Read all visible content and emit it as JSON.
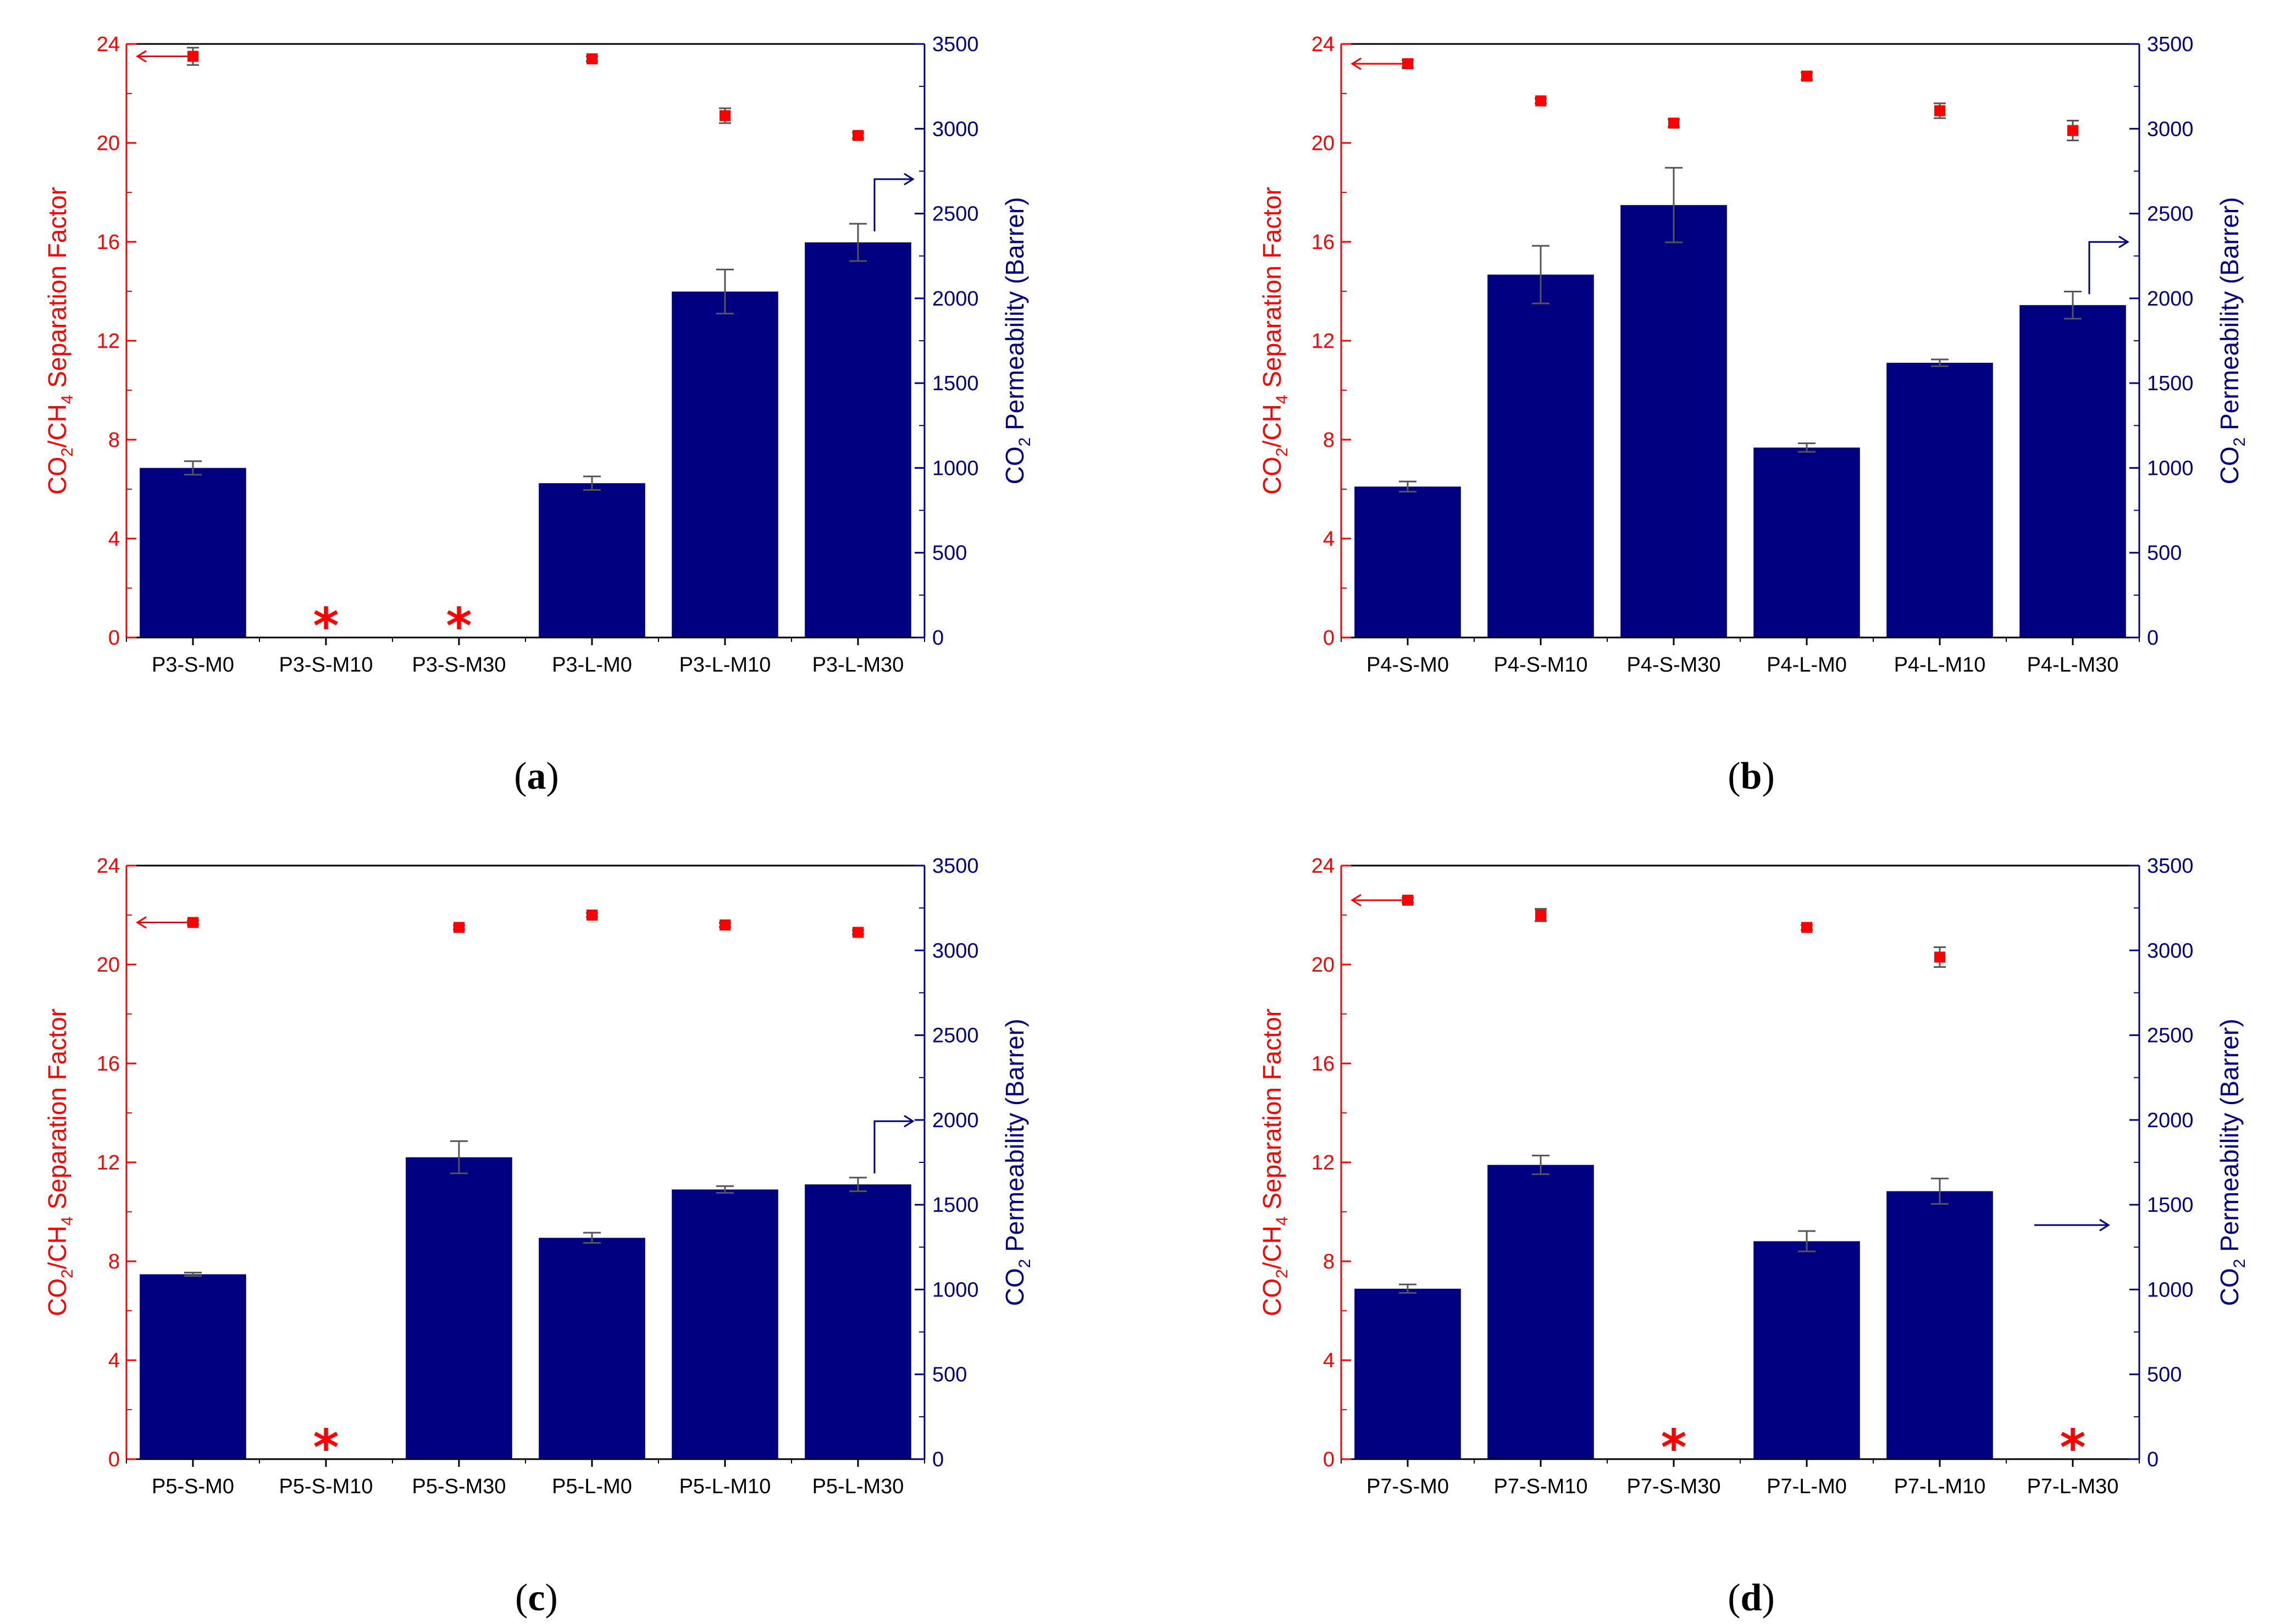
{
  "colors": {
    "separation": "#ff0000",
    "permeability": "#000080",
    "error_bar": "#555555",
    "axis": "#000000"
  },
  "chart_data": [
    {
      "type": "bar",
      "panel_label": "a",
      "categories": [
        "P3-S-M0",
        "P3-S-M10",
        "P3-S-M30",
        "P3-L-M0",
        "P3-L-M10",
        "P3-L-M30"
      ],
      "series": [
        {
          "name": "CO2 Permeability (Barrer)",
          "axis": "right",
          "values": [
            1000,
            null,
            null,
            910,
            2040,
            2330
          ],
          "errors": [
            40,
            null,
            null,
            40,
            130,
            110
          ]
        },
        {
          "name": "CO2/CH4 Separation Factor",
          "axis": "left",
          "type": "scatter",
          "values": [
            23.5,
            null,
            null,
            23.4,
            21.1,
            20.3
          ],
          "errors": [
            0.35,
            null,
            null,
            0.1,
            0.3,
            0.12
          ]
        }
      ],
      "missing_markers": [
        "P3-S-M10",
        "P3-S-M30"
      ],
      "missing_symbol": "*",
      "ylim_left": [
        0,
        24
      ],
      "yticks_left": [
        0,
        4,
        8,
        12,
        16,
        20,
        24
      ],
      "ylim_right": [
        0,
        3500
      ],
      "yticks_right": [
        0,
        500,
        1000,
        1500,
        2000,
        2500,
        3000,
        3500
      ],
      "ylabel_left": {
        "main_1": "CO",
        "sub_1": "2",
        "main_2": "/CH",
        "sub_2": "4",
        "main_3": " Separation Factor"
      },
      "ylabel_right": {
        "main_1": "CO",
        "sub_1": "2",
        "main_2": " Permeability (Barrer)"
      },
      "annotations": {
        "left_arrow": {
          "x_index": 0,
          "y_left": 23.5
        },
        "right_arrow": {
          "x_index": 5,
          "y_right": 2330,
          "style": "bent"
        }
      }
    },
    {
      "type": "bar",
      "panel_label": "b",
      "categories": [
        "P4-S-M0",
        "P4-S-M10",
        "P4-S-M30",
        "P4-L-M0",
        "P4-L-M10",
        "P4-L-M30"
      ],
      "series": [
        {
          "name": "CO2 Permeability (Barrer)",
          "axis": "right",
          "values": [
            890,
            2140,
            2550,
            1120,
            1620,
            1960
          ],
          "errors": [
            30,
            170,
            220,
            25,
            20,
            80
          ]
        },
        {
          "name": "CO2/CH4 Separation Factor",
          "axis": "left",
          "type": "scatter",
          "values": [
            23.2,
            21.7,
            20.8,
            22.7,
            21.3,
            20.5
          ],
          "errors": [
            0.15,
            0.1,
            0.15,
            0.15,
            0.3,
            0.4
          ]
        }
      ],
      "missing_markers": [],
      "missing_symbol": "*",
      "ylim_left": [
        0,
        24
      ],
      "yticks_left": [
        0,
        4,
        8,
        12,
        16,
        20,
        24
      ],
      "ylim_right": [
        0,
        3500
      ],
      "yticks_right": [
        0,
        500,
        1000,
        1500,
        2000,
        2500,
        3000,
        3500
      ],
      "ylabel_left": {
        "main_1": "CO",
        "sub_1": "2",
        "main_2": "/CH",
        "sub_2": "4",
        "main_3": " Separation Factor"
      },
      "ylabel_right": {
        "main_1": "CO",
        "sub_1": "2",
        "main_2": " Permeability (Barrer)"
      },
      "annotations": {
        "left_arrow": {
          "x_index": 0,
          "y_left": 23.2
        },
        "right_arrow": {
          "x_index": 5,
          "y_right": 1960,
          "style": "bent"
        }
      }
    },
    {
      "type": "bar",
      "panel_label": "c",
      "categories": [
        "P5-S-M0",
        "P5-S-M10",
        "P5-S-M30",
        "P5-L-M0",
        "P5-L-M10",
        "P5-L-M30"
      ],
      "series": [
        {
          "name": "CO2 Permeability (Barrer)",
          "axis": "right",
          "values": [
            1090,
            null,
            1780,
            1305,
            1590,
            1620
          ],
          "errors": [
            10,
            null,
            95,
            30,
            20,
            40
          ]
        },
        {
          "name": "CO2/CH4 Separation Factor",
          "axis": "left",
          "type": "scatter",
          "values": [
            21.7,
            null,
            21.5,
            22.0,
            21.6,
            21.3
          ],
          "errors": [
            0.08,
            null,
            0.08,
            0.08,
            0.08,
            0.08
          ]
        }
      ],
      "missing_markers": [
        "P5-S-M10"
      ],
      "missing_symbol": "*",
      "ylim_left": [
        0,
        24
      ],
      "yticks_left": [
        0,
        4,
        8,
        12,
        16,
        20,
        24
      ],
      "ylim_right": [
        0,
        3500
      ],
      "yticks_right": [
        0,
        500,
        1000,
        1500,
        2000,
        2500,
        3000,
        3500
      ],
      "ylabel_left": {
        "main_1": "CO",
        "sub_1": "2",
        "main_2": "/CH",
        "sub_2": "4",
        "main_3": " Separation Factor"
      },
      "ylabel_right": {
        "main_1": "CO",
        "sub_1": "2",
        "main_2": " Permeability (Barrer)"
      },
      "annotations": {
        "left_arrow": {
          "x_index": 0,
          "y_left": 21.7
        },
        "right_arrow": {
          "x_index": 5,
          "y_right": 1620,
          "style": "bent"
        }
      }
    },
    {
      "type": "bar",
      "panel_label": "d",
      "categories": [
        "P7-S-M0",
        "P7-S-M10",
        "P7-S-M30",
        "P7-L-M0",
        "P7-L-M10",
        "P7-L-M30"
      ],
      "series": [
        {
          "name": "CO2 Permeability (Barrer)",
          "axis": "right",
          "values": [
            1005,
            1735,
            null,
            1285,
            1580,
            null
          ],
          "errors": [
            25,
            55,
            null,
            60,
            75,
            null
          ]
        },
        {
          "name": "CO2/CH4 Separation Factor",
          "axis": "left",
          "type": "scatter",
          "values": [
            22.6,
            22.0,
            null,
            21.5,
            20.3,
            null
          ],
          "errors": [
            0.1,
            0.25,
            null,
            0.1,
            0.4,
            null
          ]
        }
      ],
      "missing_markers": [
        "P7-S-M30",
        "P7-L-M30"
      ],
      "missing_symbol": "*",
      "ylim_left": [
        0,
        24
      ],
      "yticks_left": [
        0,
        4,
        8,
        12,
        16,
        20,
        24
      ],
      "ylim_right": [
        0,
        3500
      ],
      "yticks_right": [
        0,
        500,
        1000,
        1500,
        2000,
        2500,
        3000,
        3500
      ],
      "ylabel_left": {
        "main_1": "CO",
        "sub_1": "2",
        "main_2": "/CH",
        "sub_2": "4",
        "main_3": " Separation Factor"
      },
      "ylabel_right": {
        "main_1": "CO",
        "sub_1": "2",
        "main_2": " Permeability (Barrer)"
      },
      "annotations": {
        "left_arrow": {
          "x_index": 0,
          "y_left": 22.6
        },
        "right_arrow": {
          "x_index": 5,
          "y_right": 1380,
          "style": "straight"
        }
      }
    }
  ]
}
